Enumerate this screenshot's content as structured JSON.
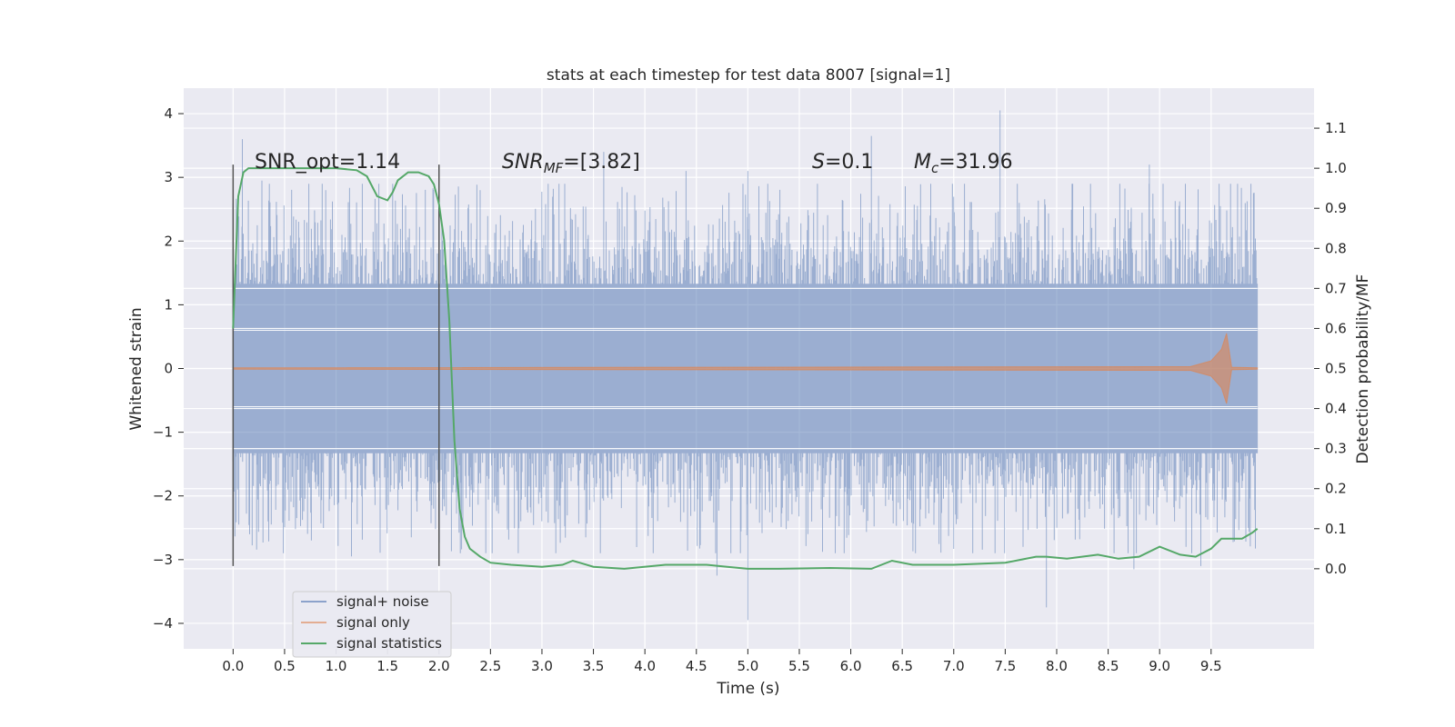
{
  "chart_data": {
    "type": "line",
    "title": "stats at each timestep for test data 8007 [signal=1]",
    "xlabel": "Time (s)",
    "ylabel": "Whitened strain",
    "y2label": "Detection probability/MF",
    "xlim": [
      -0.48,
      10.5
    ],
    "ylim": [
      -4.4,
      4.4
    ],
    "y2lim": [
      -0.2,
      1.2
    ],
    "x_ticks": [
      "0.0",
      "0.5",
      "1.0",
      "1.5",
      "2.0",
      "2.5",
      "3.0",
      "3.5",
      "4.0",
      "4.5",
      "5.0",
      "5.5",
      "6.0",
      "6.5",
      "7.0",
      "7.5",
      "8.0",
      "8.5",
      "9.0",
      "9.5"
    ],
    "y_ticks": [
      "−4",
      "−3",
      "−2",
      "−1",
      "0",
      "1",
      "2",
      "3",
      "4"
    ],
    "y2_ticks": [
      "0.0",
      "0.1",
      "0.2",
      "0.3",
      "0.4",
      "0.5",
      "0.6",
      "0.7",
      "0.8",
      "0.9",
      "1.0",
      "1.1"
    ],
    "grid": true,
    "legend_position": "lower-left",
    "annotations": {
      "snr_opt": "SNR_opt=1.14",
      "snr_mf_main": "SNR",
      "snr_mf_sub": "MF",
      "snr_mf_value": "=[3.82]",
      "s_main": "S",
      "s_value": "=0.1",
      "mc_main": "M",
      "mc_sub": "c",
      "mc_value": "=31.96"
    },
    "vertical_markers": [
      0.0,
      2.0
    ],
    "marker_y_range": [
      -3.1,
      3.2
    ],
    "series": [
      {
        "name": "signal+ noise",
        "color": "#4c72b0",
        "x_range": [
          0.0,
          9.95
        ],
        "typical_band": [
          -1.9,
          1.9
        ],
        "spikes": [
          {
            "x": 0.09,
            "y": 3.6
          },
          {
            "x": 0.28,
            "y": 2.95
          },
          {
            "x": 0.9,
            "y": 2.8
          },
          {
            "x": 1.55,
            "y": 2.9
          },
          {
            "x": 2.4,
            "y": 2.8
          },
          {
            "x": 3.6,
            "y": 3.4
          },
          {
            "x": 4.4,
            "y": 3.1
          },
          {
            "x": 5.0,
            "y": 3.1
          },
          {
            "x": 6.2,
            "y": 3.65
          },
          {
            "x": 7.45,
            "y": 4.05
          },
          {
            "x": 8.9,
            "y": 3.2
          },
          {
            "x": 1.15,
            "y": -2.95
          },
          {
            "x": 4.7,
            "y": -3.25
          },
          {
            "x": 5.0,
            "y": -3.95
          },
          {
            "x": 7.9,
            "y": -3.75
          },
          {
            "x": 8.75,
            "y": -3.15
          },
          {
            "x": 9.4,
            "y": -3.1
          }
        ]
      },
      {
        "name": "signal only",
        "color": "#dd8452",
        "x": [
          0.0,
          9.3,
          9.5,
          9.6,
          9.65,
          9.7,
          9.95
        ],
        "envelope": [
          0.01,
          0.03,
          0.12,
          0.3,
          0.55,
          0.02,
          0.01
        ]
      },
      {
        "name": "signal statistics",
        "color": "#55a868",
        "axis": "right",
        "x": [
          0.0,
          0.05,
          0.1,
          0.15,
          0.25,
          0.4,
          0.6,
          0.8,
          1.0,
          1.2,
          1.3,
          1.4,
          1.5,
          1.55,
          1.6,
          1.7,
          1.8,
          1.9,
          1.95,
          2.0,
          2.05,
          2.1,
          2.15,
          2.2,
          2.25,
          2.3,
          2.4,
          2.5,
          2.7,
          3.0,
          3.2,
          3.3,
          3.5,
          3.8,
          4.2,
          4.6,
          4.8,
          5.0,
          5.3,
          5.8,
          6.2,
          6.4,
          6.6,
          7.0,
          7.5,
          7.8,
          7.9,
          8.1,
          8.4,
          8.6,
          8.8,
          9.0,
          9.2,
          9.35,
          9.5,
          9.6,
          9.7,
          9.8,
          9.9,
          9.95
        ],
        "values": [
          0.6,
          0.93,
          0.99,
          1.0,
          1.0,
          1.0,
          1.0,
          1.0,
          1.0,
          0.995,
          0.98,
          0.93,
          0.92,
          0.94,
          0.97,
          0.99,
          0.99,
          0.98,
          0.96,
          0.91,
          0.82,
          0.62,
          0.32,
          0.15,
          0.08,
          0.05,
          0.03,
          0.015,
          0.01,
          0.005,
          0.01,
          0.02,
          0.005,
          0.0,
          0.01,
          0.01,
          0.005,
          0.0,
          0.0,
          0.002,
          0.0,
          0.02,
          0.01,
          0.01,
          0.015,
          0.03,
          0.03,
          0.025,
          0.035,
          0.025,
          0.03,
          0.055,
          0.035,
          0.03,
          0.05,
          0.075,
          0.075,
          0.075,
          0.09,
          0.1
        ]
      }
    ]
  }
}
